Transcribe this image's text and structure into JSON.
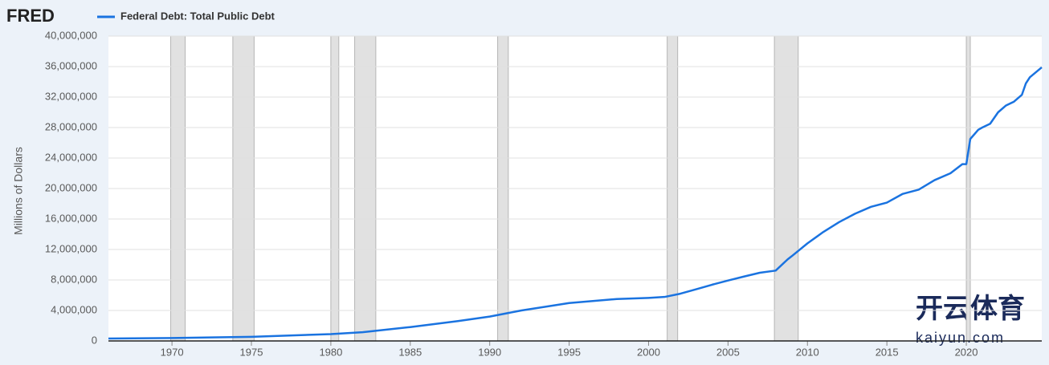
{
  "logo": "FRED",
  "watermark": {
    "title": "开云体育",
    "site": "kaiyun.com"
  },
  "chart_data": {
    "type": "line",
    "y_label": "Millions of Dollars",
    "series": [
      {
        "name": "Federal Debt: Total Public Debt",
        "color": "#1a73e0",
        "x": [
          1966,
          1970,
          1975,
          1980,
          1982,
          1985,
          1988,
          1990,
          1992,
          1995,
          1998,
          2000,
          2001,
          2002,
          2003,
          2004,
          2005,
          2006,
          2007,
          2008,
          2008.75,
          2009,
          2010,
          2011,
          2012,
          2013,
          2014,
          2015,
          2016,
          2017,
          2018,
          2019,
          2019.75,
          2020,
          2020.25,
          2020.75,
          2021,
          2021.5,
          2022,
          2022.5,
          2023,
          2023.5,
          2023.75,
          2024,
          2024.75
        ],
        "values": [
          320000,
          380000,
          540000,
          900000,
          1140000,
          1820000,
          2600000,
          3200000,
          4000000,
          4970000,
          5500000,
          5650000,
          5770000,
          6200000,
          6780000,
          7380000,
          7930000,
          8450000,
          8950000,
          9230000,
          10700000,
          11100000,
          12800000,
          14300000,
          15600000,
          16700000,
          17600000,
          18150000,
          19300000,
          19850000,
          21100000,
          22000000,
          23200000,
          23200000,
          26500000,
          27700000,
          28000000,
          28500000,
          30000000,
          30900000,
          31400000,
          32300000,
          33800000,
          34600000,
          35900000
        ]
      }
    ],
    "recessions": [
      [
        1969.92,
        1970.83
      ],
      [
        1973.83,
        1975.17
      ],
      [
        1980.0,
        1980.5
      ],
      [
        1981.5,
        1982.83
      ],
      [
        1990.5,
        1991.17
      ],
      [
        2001.17,
        2001.83
      ],
      [
        2007.92,
        2009.42
      ],
      [
        2020.0,
        2020.25
      ]
    ],
    "xlim": [
      1966,
      2024.75
    ],
    "xticks": [
      1970,
      1975,
      1980,
      1985,
      1990,
      1995,
      2000,
      2005,
      2010,
      2015,
      2020
    ],
    "ylim": [
      0,
      40000000
    ],
    "yticks": [
      0,
      {
        "value": 4000000,
        "label": "4,000,000"
      },
      {
        "value": 8000000,
        "label": "8,000,000"
      },
      {
        "value": 12000000,
        "label": "12,000,000"
      },
      {
        "value": 16000000,
        "label": "16,000,000"
      },
      {
        "value": 20000000,
        "label": "20,000,000"
      },
      {
        "value": 24000000,
        "label": "24,000,000"
      },
      {
        "value": 28000000,
        "label": "28,000,000"
      },
      {
        "value": 32000000,
        "label": "32,000,000"
      },
      {
        "value": 36000000,
        "label": "36,000,000"
      },
      {
        "value": 40000000,
        "label": "40,000,000"
      }
    ],
    "grid": true
  }
}
